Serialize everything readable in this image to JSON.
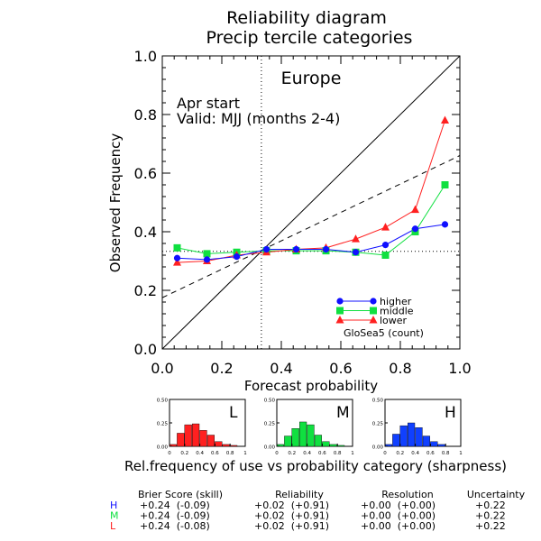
{
  "title_line1": "Reliability diagram",
  "title_line2": "Precip tercile categories",
  "region": "Europe",
  "start_text": "Apr start",
  "valid_text": "Valid: MJJ (months 2-4)",
  "colors": {
    "higher": "#1010ff",
    "middle": "#10e040",
    "lower": "#ff2020",
    "axis": "#000000"
  },
  "chart_data": {
    "type": "line",
    "xlabel": "Forecast probability",
    "ylabel": "Observed Frequency",
    "xlim": [
      0,
      1
    ],
    "ylim": [
      0,
      1
    ],
    "xticks": [
      "0.0",
      "0.2",
      "0.4",
      "0.6",
      "0.8",
      "1.0"
    ],
    "yticks": [
      "0.0",
      "0.2",
      "0.4",
      "0.6",
      "0.8",
      "1.0"
    ],
    "x": [
      0.05,
      0.15,
      0.25,
      0.35,
      0.45,
      0.55,
      0.65,
      0.75,
      0.85,
      0.95
    ],
    "series": [
      {
        "name": "higher",
        "marker": "circle",
        "values": [
          0.31,
          0.305,
          0.315,
          0.34,
          0.34,
          0.34,
          0.33,
          0.355,
          0.41,
          0.425
        ]
      },
      {
        "name": "middle",
        "marker": "square",
        "values": [
          0.345,
          0.325,
          0.33,
          0.335,
          0.335,
          0.335,
          0.33,
          0.32,
          0.4,
          0.56
        ]
      },
      {
        "name": "lower",
        "marker": "triangle",
        "values": [
          0.295,
          0.3,
          0.32,
          0.33,
          0.34,
          0.345,
          0.375,
          0.415,
          0.475,
          0.78
        ]
      }
    ],
    "climatology": 0.333,
    "no_skill_line": {
      "x": [
        0,
        1
      ],
      "y": [
        0.175,
        0.66
      ]
    },
    "legend_caption": "GloSea5 (count)",
    "legend_position": "bottom-right"
  },
  "sharpness": {
    "caption": "Rel.frequency of use vs probability category (sharpness)",
    "yticks": [
      "0.50",
      "0.25",
      "0.00"
    ],
    "xticks": [
      "0",
      "0.2",
      "0.4",
      "0.6",
      "0.8",
      "1"
    ],
    "panels": [
      {
        "label": "L",
        "color": "#ff2020",
        "values": [
          0.02,
          0.14,
          0.23,
          0.24,
          0.17,
          0.12,
          0.05,
          0.02,
          0.01,
          0.0
        ]
      },
      {
        "label": "M",
        "color": "#10e040",
        "values": [
          0.02,
          0.11,
          0.19,
          0.26,
          0.23,
          0.12,
          0.05,
          0.02,
          0.01,
          0.0
        ]
      },
      {
        "label": "H",
        "color": "#1040ff",
        "values": [
          0.02,
          0.13,
          0.22,
          0.25,
          0.2,
          0.11,
          0.05,
          0.02,
          0.0,
          0.0
        ]
      }
    ]
  },
  "scores": {
    "headers": [
      "Brier Score (skill)",
      "Reliability",
      "Resolution",
      "Uncertainty"
    ],
    "rows": [
      {
        "label": "H",
        "color": "#1010ff",
        "cells": [
          "+0.24  (-0.09)",
          "+0.02  (+0.91)",
          "+0.00  (+0.00)",
          "+0.22"
        ]
      },
      {
        "label": "M",
        "color": "#10e040",
        "cells": [
          "+0.24  (-0.09)",
          "+0.02  (+0.91)",
          "+0.00  (+0.00)",
          "+0.22"
        ]
      },
      {
        "label": "L",
        "color": "#ff2020",
        "cells": [
          "+0.24  (-0.08)",
          "+0.02  (+0.91)",
          "+0.00  (+0.00)",
          "+0.22"
        ]
      }
    ]
  }
}
